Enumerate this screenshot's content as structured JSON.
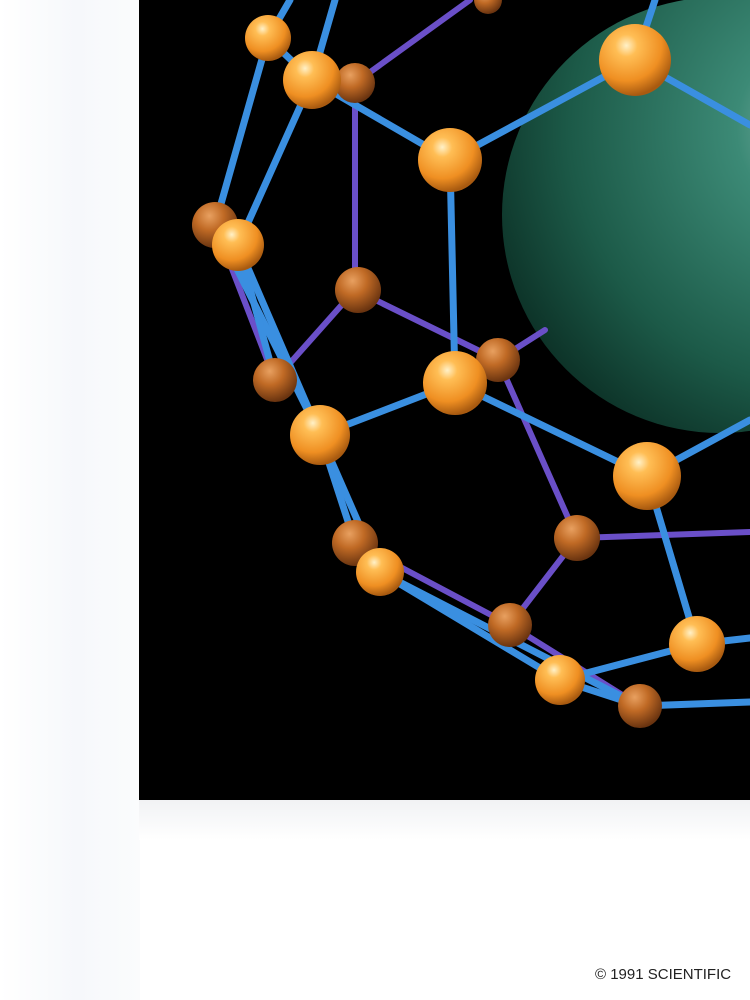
{
  "colors": {
    "background": "#000000",
    "atom": "#f5a13a",
    "front_bond": "#3a8fe0",
    "back_bond": "#6a4fc8",
    "inner_sphere": "#1f6a55"
  },
  "copyright": "© 1991 SCIENTIFIC"
}
